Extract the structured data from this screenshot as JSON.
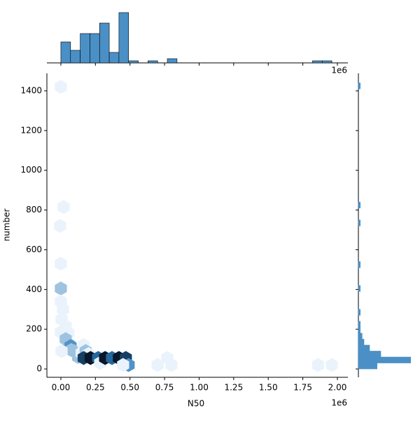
{
  "chart_data": [
    {
      "type": "hexbin",
      "xlabel": "N50",
      "ylabel": "number",
      "offset_text": "1e6",
      "x": [
        0,
        20000,
        -5000,
        0,
        0,
        0,
        15000,
        5000,
        35000,
        55000,
        0,
        35000,
        55000,
        70000,
        75000,
        5000,
        95000,
        125000,
        150000,
        165000,
        180000,
        200000,
        165000,
        215000,
        270000,
        285000,
        320000,
        370000,
        420000,
        470000,
        490000,
        450000,
        700000,
        770000,
        800000,
        1860000,
        1960000
      ],
      "y": [
        1420,
        815,
        720,
        530,
        405,
        340,
        300,
        250,
        215,
        180,
        185,
        150,
        125,
        115,
        95,
        90,
        90,
        60,
        80,
        120,
        90,
        75,
        55,
        55,
        55,
        30,
        55,
        55,
        55,
        55,
        20,
        20,
        20,
        55,
        20,
        20,
        20
      ],
      "counts": [
        1,
        1,
        1,
        1,
        2,
        1,
        1,
        1,
        1,
        1,
        1,
        2,
        2,
        3,
        2,
        1,
        2,
        2,
        1,
        1,
        2,
        1,
        5,
        6,
        4,
        1,
        6,
        4,
        6,
        5,
        3,
        1,
        1,
        1,
        1,
        1,
        1
      ],
      "cmap": [
        "#eaf3fb",
        "#2b7bba",
        "#08172a"
      ],
      "xlim": [
        -101000,
        2076000
      ],
      "ylim": [
        -42,
        1488
      ],
      "xticks": [
        {
          "value": 0,
          "label": "0.00"
        },
        {
          "value": 250000,
          "label": "0.25"
        },
        {
          "value": 500000,
          "label": "0.50"
        },
        {
          "value": 750000,
          "label": "0.75"
        },
        {
          "value": 1000000,
          "label": "1.00"
        },
        {
          "value": 1250000,
          "label": "1.25"
        },
        {
          "value": 1500000,
          "label": "1.50"
        },
        {
          "value": 1750000,
          "label": "1.75"
        },
        {
          "value": 2000000,
          "label": "2.00"
        }
      ],
      "yticks": [
        0,
        200,
        400,
        600,
        800,
        1000,
        1200,
        1400
      ]
    },
    {
      "type": "histogram",
      "orientation": "vertical",
      "color": "#4a90c6",
      "offset_text": "1e6",
      "bins": [
        0,
        70000,
        140000,
        210000,
        280000,
        350000,
        420000,
        490000,
        560000,
        630000,
        700000,
        770000,
        840000,
        910000,
        980000,
        1050000,
        1120000,
        1190000,
        1260000,
        1330000,
        1400000,
        1470000,
        1540000,
        1610000,
        1680000,
        1750000,
        1820000,
        1890000,
        1960000
      ],
      "values": [
        10,
        6,
        14,
        14,
        19,
        5,
        24,
        1,
        0,
        1,
        0,
        2,
        0,
        0,
        0,
        0,
        0,
        0,
        0,
        0,
        0,
        0,
        0,
        0,
        0,
        0,
        1,
        1
      ],
      "ylim": [
        0,
        25
      ]
    },
    {
      "type": "histogram",
      "orientation": "horizontal",
      "color": "#4a90c6",
      "bins": [
        0,
        30,
        60,
        90,
        120,
        150,
        180,
        210,
        240,
        270,
        300,
        330,
        360,
        390,
        420,
        450,
        480,
        510,
        540,
        570,
        600,
        630,
        660,
        690,
        720,
        750,
        780,
        810,
        840,
        870,
        900,
        930,
        960,
        990,
        1020,
        1050,
        1080,
        1110,
        1140,
        1170,
        1200,
        1230,
        1260,
        1290,
        1320,
        1350,
        1380,
        1410,
        1440
      ],
      "values": [
        10,
        28,
        12,
        6,
        3,
        2,
        1,
        1,
        0,
        1,
        0,
        0,
        0,
        1,
        0,
        0,
        0,
        1,
        0,
        0,
        0,
        0,
        0,
        0,
        1,
        0,
        0,
        1,
        0,
        0,
        0,
        0,
        0,
        0,
        0,
        0,
        0,
        0,
        0,
        0,
        0,
        0,
        0,
        0,
        0,
        0,
        0,
        1
      ],
      "xlim": [
        0,
        30
      ]
    }
  ]
}
